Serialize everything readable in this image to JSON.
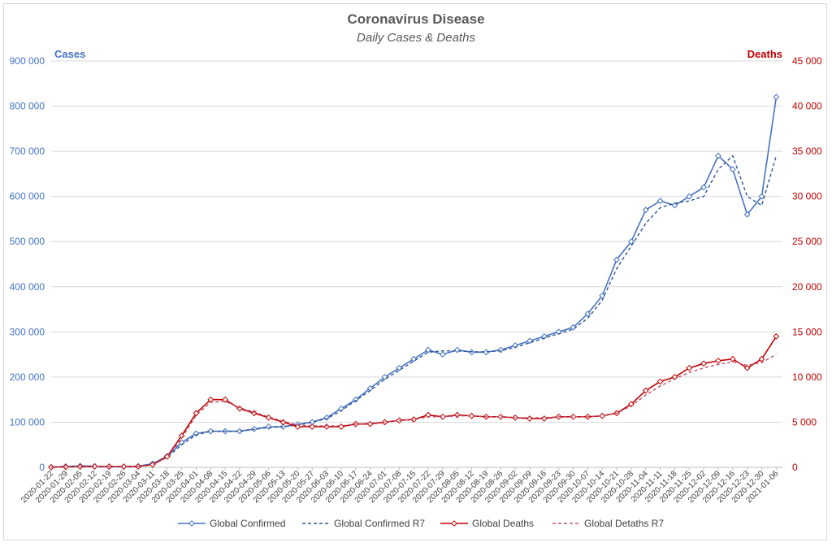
{
  "chart_data": {
    "type": "line",
    "title": "Coronavirus Disease",
    "subtitle": "Daily Cases & Deaths",
    "y_left_label": "Cases",
    "y_right_label": "Deaths",
    "y_left_ticks": [
      "0",
      "100 000",
      "200 000",
      "300 000",
      "400 000",
      "500 000",
      "600 000",
      "700 000",
      "800 000",
      "900 000"
    ],
    "y_right_ticks": [
      "0",
      "5 000",
      "10 000",
      "15 000",
      "20 000",
      "25 000",
      "30 000",
      "35 000",
      "40 000",
      "45 000"
    ],
    "ylim_left": [
      0,
      900000
    ],
    "ylim_right": [
      0,
      45000
    ],
    "x_start": "2020-01-22",
    "x_end": "2021-01-09",
    "x_tick_labels": [
      "2020-01-22",
      "2020-01-29",
      "2020-02-05",
      "2020-02-12",
      "2020-02-19",
      "2020-02-26",
      "2020-03-04",
      "2020-03-11",
      "2020-03-18",
      "2020-03-25",
      "2020-04-01",
      "2020-04-08",
      "2020-04-15",
      "2020-04-22",
      "2020-04-29",
      "2020-05-06",
      "2020-05-13",
      "2020-05-20",
      "2020-05-27",
      "2020-06-03",
      "2020-06-10",
      "2020-06-17",
      "2020-06-24",
      "2020-07-01",
      "2020-07-08",
      "2020-07-15",
      "2020-07-22",
      "2020-07-29",
      "2020-08-05",
      "2020-08-12",
      "2020-08-19",
      "2020-08-26",
      "2020-09-02",
      "2020-09-09",
      "2020-09-16",
      "2020-09-23",
      "2020-09-30",
      "2020-10-07",
      "2020-10-14",
      "2020-10-21",
      "2020-10-28",
      "2020-11-04",
      "2020-11-11",
      "2020-11-18",
      "2020-11-25",
      "2020-12-02",
      "2020-12-09",
      "2020-12-16",
      "2020-12-23",
      "2020-12-30",
      "2021-01-06"
    ],
    "weekly_axis": "left",
    "series": [
      {
        "name": "Global Confirmed",
        "axis": "left",
        "color": "#4472c4",
        "style": "solid-diamond",
        "weekly_values": [
          600,
          2000,
          3000,
          2500,
          1500,
          1500,
          2500,
          8000,
          25000,
          55000,
          75000,
          80000,
          80000,
          80000,
          85000,
          90000,
          90000,
          95000,
          100000,
          110000,
          130000,
          150000,
          175000,
          200000,
          220000,
          240000,
          260000,
          250000,
          260000,
          255000,
          255000,
          260000,
          270000,
          280000,
          290000,
          300000,
          310000,
          340000,
          380000,
          460000,
          500000,
          570000,
          590000,
          580000,
          600000,
          620000,
          690000,
          660000,
          560000,
          600000,
          820000
        ]
      },
      {
        "name": "Global Confirmed R7",
        "axis": "left",
        "color": "#2f5597",
        "style": "dashed",
        "weekly_values": [
          500,
          1800,
          2800,
          2300,
          1500,
          1500,
          2500,
          7000,
          22000,
          50000,
          72000,
          80000,
          80000,
          80000,
          84000,
          88000,
          90000,
          94000,
          100000,
          108000,
          125000,
          148000,
          170000,
          195000,
          215000,
          235000,
          255000,
          258000,
          258000,
          256000,
          256000,
          258000,
          266000,
          276000,
          286000,
          296000,
          306000,
          330000,
          370000,
          440000,
          490000,
          540000,
          575000,
          585000,
          590000,
          600000,
          660000,
          690000,
          600000,
          580000,
          690000
        ]
      },
      {
        "name": "Global Deaths",
        "axis": "right",
        "color": "#c00000",
        "style": "solid-diamond",
        "weekly_values": [
          20,
          50,
          80,
          100,
          90,
          90,
          100,
          300,
          1200,
          3500,
          6000,
          7500,
          7500,
          6500,
          6000,
          5500,
          5000,
          4500,
          4500,
          4500,
          4500,
          4800,
          4800,
          5000,
          5200,
          5300,
          5800,
          5600,
          5800,
          5700,
          5600,
          5600,
          5500,
          5400,
          5400,
          5600,
          5600,
          5600,
          5700,
          6000,
          7000,
          8500,
          9500,
          10000,
          11000,
          11500,
          11800,
          12000,
          11000,
          12000,
          14500
        ]
      },
      {
        "name": "Global Detaths R7",
        "axis": "right",
        "color": "#c0506c",
        "style": "dashed",
        "weekly_values": [
          20,
          45,
          75,
          95,
          90,
          90,
          100,
          280,
          1100,
          3200,
          5800,
          7200,
          7300,
          6600,
          6100,
          5600,
          5100,
          4700,
          4600,
          4600,
          4600,
          4800,
          4900,
          5000,
          5200,
          5300,
          5600,
          5600,
          5700,
          5700,
          5600,
          5600,
          5500,
          5500,
          5500,
          5600,
          5600,
          5600,
          5700,
          6000,
          6800,
          8000,
          9000,
          9800,
          10500,
          11000,
          11400,
          11700,
          11300,
          11600,
          12500
        ]
      }
    ]
  }
}
